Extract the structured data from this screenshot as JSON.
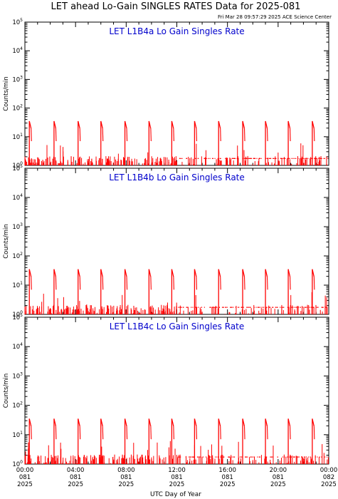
{
  "figure": {
    "title": "LET ahead Lo-Gain SINGLES RATES Data for 2025-081",
    "timestamp": "Fri Mar 28 09:57:29 2025 ACE Science Center",
    "xlabel": "UTC Day of Year",
    "ylabel": "Counts/min",
    "colors": {
      "data": "#ff0000",
      "panel_title": "#0000cc",
      "axes": "#000000"
    }
  },
  "chart_data": [
    {
      "type": "line",
      "title": "LET L1B4a Lo Gain Singles Rate",
      "ylabel": "Counts/min",
      "yscale": "log",
      "ylim": [
        1,
        100000
      ],
      "xlim": [
        0,
        24
      ],
      "xunit": "hours UTC, day 081",
      "spike_peak": 35,
      "spikes_hours": [
        0.35,
        2.3,
        4.2,
        6.0,
        7.9,
        9.8,
        11.6,
        13.4,
        15.3,
        17.2,
        19.0,
        20.8,
        22.7
      ],
      "baseline_level": 1.8,
      "y_ticks": [
        "10^0",
        "10^1",
        "10^2",
        "10^3",
        "10^4",
        "10^5"
      ]
    },
    {
      "type": "line",
      "title": "LET L1B4b Lo Gain Singles Rate",
      "ylabel": "Counts/min",
      "yscale": "log",
      "ylim": [
        1,
        100000
      ],
      "xlim": [
        0,
        24
      ],
      "xunit": "hours UTC, day 081",
      "spike_peak": 35,
      "spikes_hours": [
        0.35,
        2.3,
        4.2,
        6.0,
        7.9,
        9.8,
        11.6,
        13.4,
        15.3,
        17.2,
        19.0,
        20.8,
        22.7
      ],
      "baseline_level": 1.8,
      "y_ticks": [
        "10^0",
        "10^1",
        "10^2",
        "10^3",
        "10^4",
        "10^5"
      ]
    },
    {
      "type": "line",
      "title": "LET L1B4c Lo Gain Singles Rate",
      "ylabel": "Counts/min",
      "yscale": "log",
      "ylim": [
        1,
        100000
      ],
      "xlim": [
        0,
        24
      ],
      "xunit": "hours UTC, day 081",
      "spike_peak": 35,
      "spikes_hours": [
        0.35,
        2.3,
        4.2,
        6.0,
        7.9,
        9.8,
        11.6,
        13.4,
        15.3,
        17.2,
        19.0,
        20.8,
        22.7
      ],
      "baseline_level": 1.8,
      "y_ticks": [
        "10^0",
        "10^1",
        "10^2",
        "10^3",
        "10^4",
        "10^5"
      ]
    }
  ],
  "x_ticks": [
    {
      "time": "00:00",
      "doy": "081",
      "year": "2025",
      "hour": 0
    },
    {
      "time": "04:00",
      "doy": "081",
      "year": "2025",
      "hour": 4
    },
    {
      "time": "08:00",
      "doy": "081",
      "year": "2025",
      "hour": 8
    },
    {
      "time": "12:00",
      "doy": "081",
      "year": "2025",
      "hour": 12
    },
    {
      "time": "16:00",
      "doy": "081",
      "year": "2025",
      "hour": 16
    },
    {
      "time": "20:00",
      "doy": "081",
      "year": "2025",
      "hour": 20
    },
    {
      "time": "00:00",
      "doy": "082",
      "year": "2025",
      "hour": 24
    }
  ]
}
